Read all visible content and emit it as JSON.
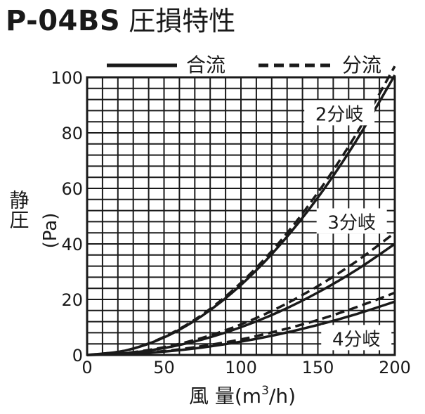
{
  "title": {
    "model": "P-04BS",
    "subtitle": "圧損特性"
  },
  "legend": [
    {
      "name": "合流",
      "style": "solid"
    },
    {
      "name": "分流",
      "style": "dashed"
    }
  ],
  "chart_data": {
    "type": "line",
    "xlabel": "風 量(m³/h)",
    "xlabel_main": "風 量(m",
    "xlabel_sup": "3",
    "xlabel_tail": "/h)",
    "ylabel": "静圧(Pa)",
    "ylabel_vertical": "静圧",
    "ylabel_unit": "(Pa)",
    "xlim": [
      0,
      200
    ],
    "ylim": [
      0,
      100
    ],
    "xticks": [
      "0",
      "50",
      "100",
      "150",
      "200"
    ],
    "yticks": [
      "0",
      "20",
      "40",
      "60",
      "80",
      "100"
    ],
    "grid": true,
    "legend_placement": "top",
    "series": [
      {
        "name": "合流",
        "group": "2分岐",
        "style": "solid",
        "x": [
          0,
          25,
          50,
          75,
          100,
          125,
          150,
          175,
          200
        ],
        "y": [
          0,
          1.6,
          6.3,
          14.2,
          25.2,
          39.4,
          56.7,
          77.2,
          100.8
        ]
      },
      {
        "name": "分流",
        "group": "2分岐",
        "style": "dashed",
        "x": [
          0,
          25,
          50,
          75,
          100,
          125,
          150,
          175,
          200
        ],
        "y": [
          0,
          1.6,
          6.5,
          14.6,
          26.0,
          40.6,
          58.5,
          79.6,
          104.0
        ]
      },
      {
        "name": "合流",
        "group": "3分岐",
        "style": "solid",
        "x": [
          0,
          25,
          50,
          75,
          100,
          125,
          150,
          175,
          200
        ],
        "y": [
          0,
          0.6,
          2.5,
          5.6,
          10.0,
          15.6,
          22.5,
          30.6,
          40.0
        ]
      },
      {
        "name": "分流",
        "group": "3分岐",
        "style": "dashed",
        "x": [
          0,
          25,
          50,
          75,
          100,
          125,
          150,
          175,
          200
        ],
        "y": [
          0,
          0.7,
          2.8,
          6.2,
          11.0,
          17.2,
          24.8,
          33.7,
          44.0
        ]
      },
      {
        "name": "合流",
        "group": "4分岐",
        "style": "solid",
        "x": [
          0,
          25,
          50,
          75,
          100,
          125,
          150,
          175,
          200
        ],
        "y": [
          0,
          0.3,
          1.2,
          2.7,
          4.8,
          7.5,
          10.8,
          14.7,
          19.2
        ]
      },
      {
        "name": "分流",
        "group": "4分岐",
        "style": "dashed",
        "x": [
          0,
          25,
          50,
          75,
          100,
          125,
          150,
          175,
          200
        ],
        "y": [
          0,
          0.4,
          1.4,
          3.2,
          5.6,
          8.8,
          12.6,
          17.2,
          22.4
        ]
      }
    ],
    "annotations": [
      {
        "text": "2分岐",
        "x": 164,
        "y": 87
      },
      {
        "text": "3分岐",
        "x": 172,
        "y": 48
      },
      {
        "text": "4分岐",
        "x": 175,
        "y": 6
      }
    ]
  }
}
